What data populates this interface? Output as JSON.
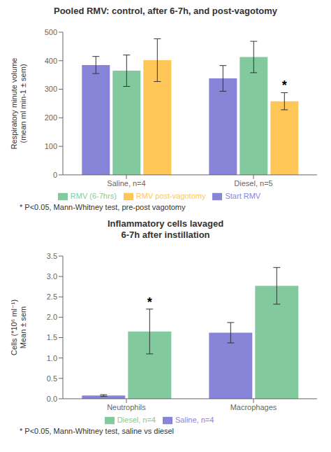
{
  "chart_data": [
    {
      "type": "bar",
      "title": "Pooled RMV: control, after 6-7h, and post-vagotomy",
      "y_label": "Respiratory minute volume\n(mean ml min-1 ± sem)",
      "categories": [
        "Saline, n=4",
        "Diesel, n=5"
      ],
      "series": [
        {
          "name": "Start RMV",
          "color": "#8884d8",
          "values": [
            385,
            338
          ],
          "errors": [
            30,
            45
          ]
        },
        {
          "name": "RMV (6-7hrs)",
          "color": "#82ca9d",
          "values": [
            365,
            413
          ],
          "errors": [
            55,
            55
          ]
        },
        {
          "name": "RMV post-vagotomy",
          "color": "#ffc658",
          "values": [
            402,
            258
          ],
          "errors": [
            75,
            30
          ]
        }
      ],
      "ylim": [
        0,
        500
      ],
      "yticks": [
        0,
        100,
        200,
        300,
        400,
        500
      ],
      "grid": false,
      "legend": "bottom",
      "annotations": [
        {
          "text": "*",
          "category": "Diesel, n=5",
          "series": "RMV post-vagotomy"
        }
      ],
      "footnote": "* P<0.05, Mann-Whitney test, pre-post vagotomy"
    },
    {
      "type": "bar",
      "title": "Inflammatory cells lavaged\n6-7h after instillation",
      "y_label": "Cells (*10⁶ ml⁻¹)\nMean ± sem",
      "categories": [
        "Neutrophils",
        "Macrophages"
      ],
      "series": [
        {
          "name": "Saline, n=4",
          "color": "#8884d8",
          "values": [
            0.08,
            1.62
          ],
          "errors": [
            0.02,
            0.25
          ]
        },
        {
          "name": "Diesel, n=4",
          "color": "#82ca9d",
          "values": [
            1.65,
            2.77
          ],
          "errors": [
            0.55,
            0.45
          ]
        }
      ],
      "ylim": [
        0,
        3.5
      ],
      "yticks": [
        {
          "value": 0,
          "label": "0.0"
        },
        0.5,
        {
          "value": 1,
          "label": "1.0"
        },
        1.5,
        {
          "value": 2,
          "label": "2.0"
        },
        2.5,
        {
          "value": 3,
          "label": "3.0"
        },
        3.5
      ],
      "grid": false,
      "legend": "bottom",
      "annotations": [
        {
          "text": "*",
          "category": "Neutrophils",
          "series": "Diesel, n=4"
        }
      ],
      "footnote": "* P<0.05, Mann-Whitney test, saline vs diesel"
    }
  ]
}
